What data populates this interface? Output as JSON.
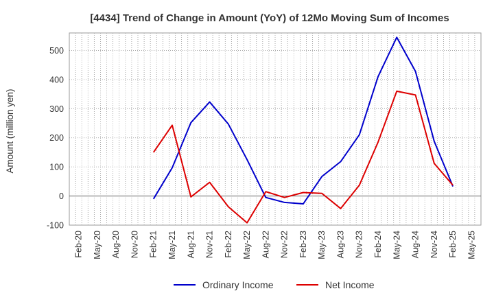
{
  "chart_data": {
    "type": "line",
    "title": "[4434]  Trend of Change in Amount (YoY) of 12Mo Moving Sum of Incomes",
    "ylabel": "Amount (million yen)",
    "xlabel": "",
    "ylim": [
      -100,
      560
    ],
    "yticks": [
      -100,
      0,
      100,
      200,
      300,
      400,
      500
    ],
    "grid": true,
    "legend_position": "bottom",
    "categories": [
      "Feb-20",
      "May-20",
      "Aug-20",
      "Nov-20",
      "Feb-21",
      "May-21",
      "Aug-21",
      "Nov-21",
      "Feb-22",
      "May-22",
      "Aug-22",
      "Nov-22",
      "Feb-23",
      "May-23",
      "Aug-23",
      "Nov-23",
      "Feb-24",
      "May-24",
      "Aug-24",
      "Nov-24",
      "Feb-25",
      "May-25"
    ],
    "series": [
      {
        "name": "Ordinary Income",
        "color": "#0000cc",
        "values": [
          null,
          null,
          null,
          null,
          -10,
          97,
          252,
          323,
          247,
          125,
          -5,
          -22,
          -27,
          67,
          118,
          210,
          410,
          545,
          428,
          188,
          33,
          null
        ]
      },
      {
        "name": "Net Income",
        "color": "#dd0000",
        "values": [
          null,
          null,
          null,
          null,
          150,
          243,
          -3,
          47,
          -37,
          -92,
          15,
          -5,
          12,
          9,
          -43,
          37,
          185,
          360,
          347,
          112,
          37,
          null
        ]
      }
    ]
  }
}
